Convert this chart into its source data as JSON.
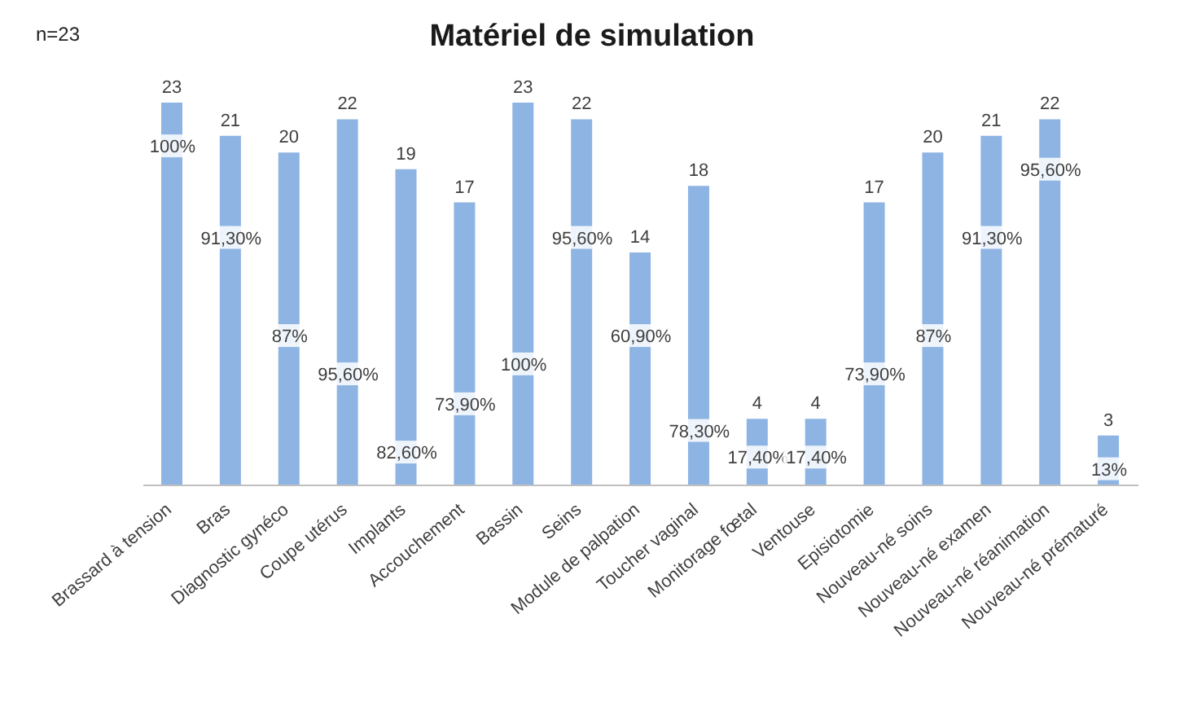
{
  "chart_data": {
    "type": "bar",
    "title": "Matériel de simulation",
    "categories": [
      "Brassard à tension",
      "Bras",
      "Diagnostic gynéco",
      "Coupe utérus",
      "Implants",
      "Accouchement",
      "Bassin",
      "Seins",
      "Module de palpation",
      "Toucher vaginal",
      "Monitorage fœtal",
      "Ventouse",
      "Episiotomie",
      "Nouveau-né soins",
      "Nouveau-né examen",
      "Nouveau-né réanimation",
      "Nouveau-né prématuré"
    ],
    "values": [
      23,
      21,
      20,
      22,
      19,
      17,
      23,
      22,
      14,
      18,
      4,
      4,
      17,
      20,
      21,
      22,
      3
    ],
    "color": "#8eb4e3",
    "data_labels": true,
    "grid": false,
    "legend": false,
    "annotations": [
      "n=23",
      {
        "text": "100%",
        "x": "Brassard à tension",
        "y": 20.4
      },
      {
        "text": "91,30%",
        "x": "Bras",
        "y": 14.9
      },
      {
        "text": "87%",
        "x": "Diagnostic gynéco",
        "y": 9
      },
      {
        "text": "95,60%",
        "x": "Coupe utérus",
        "y": 6.7
      },
      {
        "text": "82,60%",
        "x": "Implants",
        "y": 2
      },
      {
        "text": "73,90%",
        "x": "Accouchement",
        "y": 4.9
      },
      {
        "text": "100%",
        "x": "Bassin",
        "y": 7.3
      },
      {
        "text": "95,60%",
        "x": "Seins",
        "y": 14.9
      },
      {
        "text": "60,90%",
        "x": "Module de palpation",
        "y": 9
      },
      {
        "text": "78,30%",
        "x": "Toucher vaginal",
        "y": 3.3
      },
      {
        "text": "17,40%",
        "x": "Monitorage fœtal",
        "y": 1.7
      },
      {
        "text": "17,40%",
        "x": "Ventouse",
        "y": 1.7
      },
      {
        "text": "73,90%",
        "x": "Episiotomie",
        "y": 6.7
      },
      {
        "text": "87%",
        "x": "Nouveau-né soins",
        "y": 9
      },
      {
        "text": "91,30%",
        "x": "Nouveau-né examen",
        "y": 14.9
      },
      {
        "text": "95,60%",
        "x": "Nouveau-né réanimation",
        "y": 19
      },
      {
        "text": "13%",
        "x": "Nouveau-né prématuré",
        "y": 1
      }
    ]
  }
}
